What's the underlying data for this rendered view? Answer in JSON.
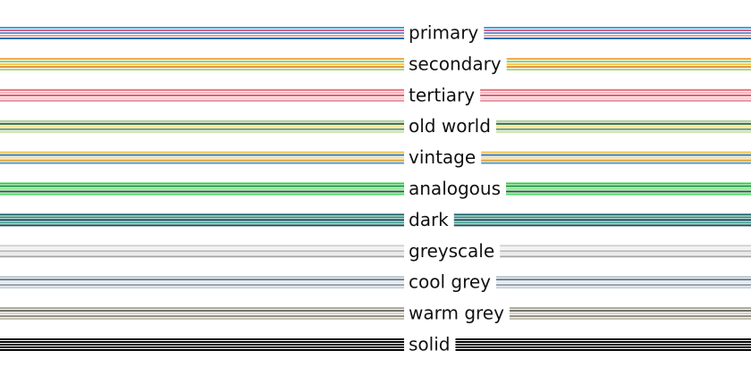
{
  "palettes": [
    {
      "name": "primary",
      "colors": [
        "#3aa6dd",
        "#e0607e",
        "#6d8fc8",
        "#f0a0a0",
        "#2a6db0"
      ]
    },
    {
      "name": "secondary",
      "colors": [
        "#f4a340",
        "#8fcf6a",
        "#f7c948",
        "#e88a3a",
        "#a6d57a"
      ]
    },
    {
      "name": "tertiary",
      "colors": [
        "#e8707e",
        "#f4b0b8",
        "#d85068",
        "#f8c8cc",
        "#e890a0"
      ]
    },
    {
      "name": "old world",
      "colors": [
        "#a8d08d",
        "#2e5e3e",
        "#f0e68c",
        "#6a9a5a",
        "#c8e0a0"
      ]
    },
    {
      "name": "vintage",
      "colors": [
        "#f2c14e",
        "#3a7ca5",
        "#f7d98b",
        "#d9a036",
        "#5c9ac0"
      ]
    },
    {
      "name": "analogous",
      "colors": [
        "#2ecc40",
        "#1a8f3a",
        "#7ee08a",
        "#0e6b2a",
        "#4cd964"
      ]
    },
    {
      "name": "dark",
      "colors": [
        "#1f5f6b",
        "#2a8f7f",
        "#0e3f4f",
        "#3aa090",
        "#145050"
      ]
    },
    {
      "name": "greyscale",
      "colors": [
        "#d0d0d0",
        "#f0f0f0",
        "#b8b8b8",
        "#e4e4e4",
        "#a8a8a8"
      ]
    },
    {
      "name": "cool grey",
      "colors": [
        "#b8c4d0",
        "#6a7a8a",
        "#dde4ea",
        "#8a9aaa",
        "#c8d2dc"
      ]
    },
    {
      "name": "warm grey",
      "colors": [
        "#a8a498",
        "#6e6a60",
        "#d4d0c4",
        "#8c887c",
        "#c0bcb0"
      ]
    },
    {
      "name": "solid",
      "colors": [
        "#000000",
        "#000000",
        "#000000",
        "#000000",
        "#000000"
      ]
    }
  ]
}
